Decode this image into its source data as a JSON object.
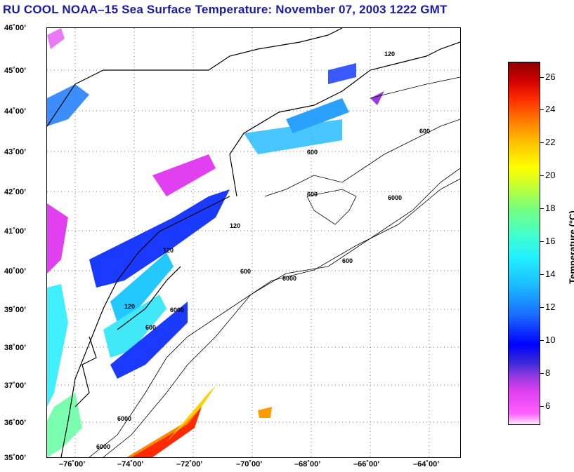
{
  "title": "RU COOL  NOAA–15  Sea Surface Temperature:  November 07, 2003 1222 GMT",
  "y_axis_labels": [
    "46˚00’",
    "45˚00’",
    "44˚00’",
    "43˚00’",
    "42˚00’",
    "41˚00’",
    "40˚00’",
    "39˚00’",
    "38˚00’",
    "37˚00’",
    "36˚00’",
    "35˚00’"
  ],
  "x_axis_labels": [
    "–76˚00’",
    "–74˚00’",
    "–72˚00’",
    "–70˚00’",
    "–68˚00’",
    "–66˚00’",
    "–64˚00’"
  ],
  "colorbar": {
    "title": "Temperature (°C)",
    "ticks": [
      "26",
      "24",
      "22",
      "20",
      "18",
      "16",
      "14",
      "12",
      "10",
      "8",
      "6"
    ],
    "range": [
      5,
      27
    ]
  },
  "contour_labels": [
    "120",
    "600",
    "6000",
    "600",
    "600",
    "120",
    "120",
    "600",
    "6000",
    "120",
    "600",
    "6000",
    "6000",
    "600",
    "6000"
  ],
  "colors": {
    "title": "#1a1aa8"
  }
}
